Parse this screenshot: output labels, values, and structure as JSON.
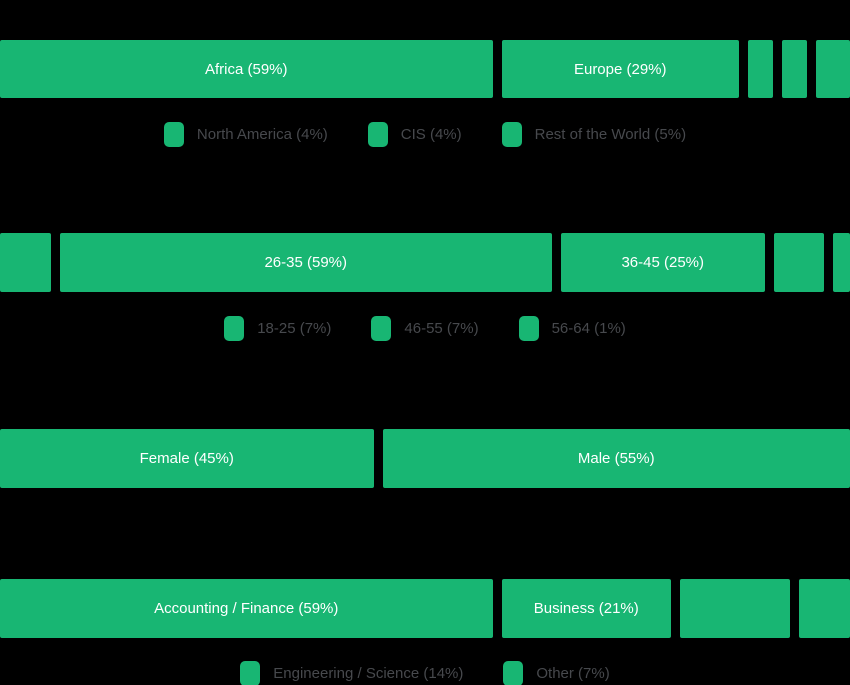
{
  "colors": {
    "background": "#000000",
    "bar_green": "#18b673",
    "bar_label_text": "#ffffff",
    "legend_text": "#47494d"
  },
  "chart_data": [
    {
      "type": "bar",
      "name": "region",
      "layout": "stacked-horizontal-100pct",
      "legend_position": "bottom-center",
      "segments": [
        {
          "label": "Africa",
          "pct": 59,
          "display": "Africa (59%)",
          "on_bar": true
        },
        {
          "label": "Europe",
          "pct": 29,
          "display": "Europe (29%)",
          "on_bar": true
        },
        {
          "label": "North America",
          "pct": 4,
          "display": "",
          "on_bar": false
        },
        {
          "label": "CIS",
          "pct": 4,
          "display": "",
          "on_bar": false
        },
        {
          "label": "Rest of the World",
          "pct": 5,
          "display": "",
          "on_bar": false
        }
      ],
      "legend": [
        {
          "label": "North America (4%)"
        },
        {
          "label": "CIS (4%)"
        },
        {
          "label": "Rest of the World (5%)"
        }
      ]
    },
    {
      "type": "bar",
      "name": "age",
      "layout": "stacked-horizontal-100pct",
      "legend_position": "bottom-center",
      "segments": [
        {
          "label": "18-25",
          "pct": 7,
          "display": "",
          "on_bar": false
        },
        {
          "label": "26-35",
          "pct": 59,
          "display": "26-35 (59%)",
          "on_bar": true
        },
        {
          "label": "36-45",
          "pct": 25,
          "display": "36-45 (25%)",
          "on_bar": true
        },
        {
          "label": "46-55",
          "pct": 7,
          "display": "",
          "on_bar": false
        },
        {
          "label": "56-64",
          "pct": 1,
          "display": "",
          "on_bar": false
        }
      ],
      "legend": [
        {
          "label": "18-25 (7%)"
        },
        {
          "label": "46-55 (7%)"
        },
        {
          "label": "56-64 (1%)"
        }
      ]
    },
    {
      "type": "bar",
      "name": "gender",
      "layout": "stacked-horizontal-100pct",
      "legend_position": "none",
      "segments": [
        {
          "label": "Female",
          "pct": 45,
          "display": "Female (45%)",
          "on_bar": true
        },
        {
          "label": "Male",
          "pct": 55,
          "display": "Male (55%)",
          "on_bar": true
        }
      ],
      "legend": []
    },
    {
      "type": "bar",
      "name": "field",
      "layout": "stacked-horizontal-100pct",
      "legend_position": "bottom-center",
      "segments": [
        {
          "label": "Accounting / Finance",
          "pct": 59,
          "display": "Accounting / Finance (59%)",
          "on_bar": true
        },
        {
          "label": "Business",
          "pct": 21,
          "display": "Business (21%)",
          "on_bar": true
        },
        {
          "label": "Engineering / Science",
          "pct": 14,
          "display": "",
          "on_bar": false
        },
        {
          "label": "Other",
          "pct": 7,
          "display": "",
          "on_bar": false
        }
      ],
      "legend": [
        {
          "label": "Engineering / Science (14%)"
        },
        {
          "label": "Other (7%)"
        }
      ]
    }
  ]
}
